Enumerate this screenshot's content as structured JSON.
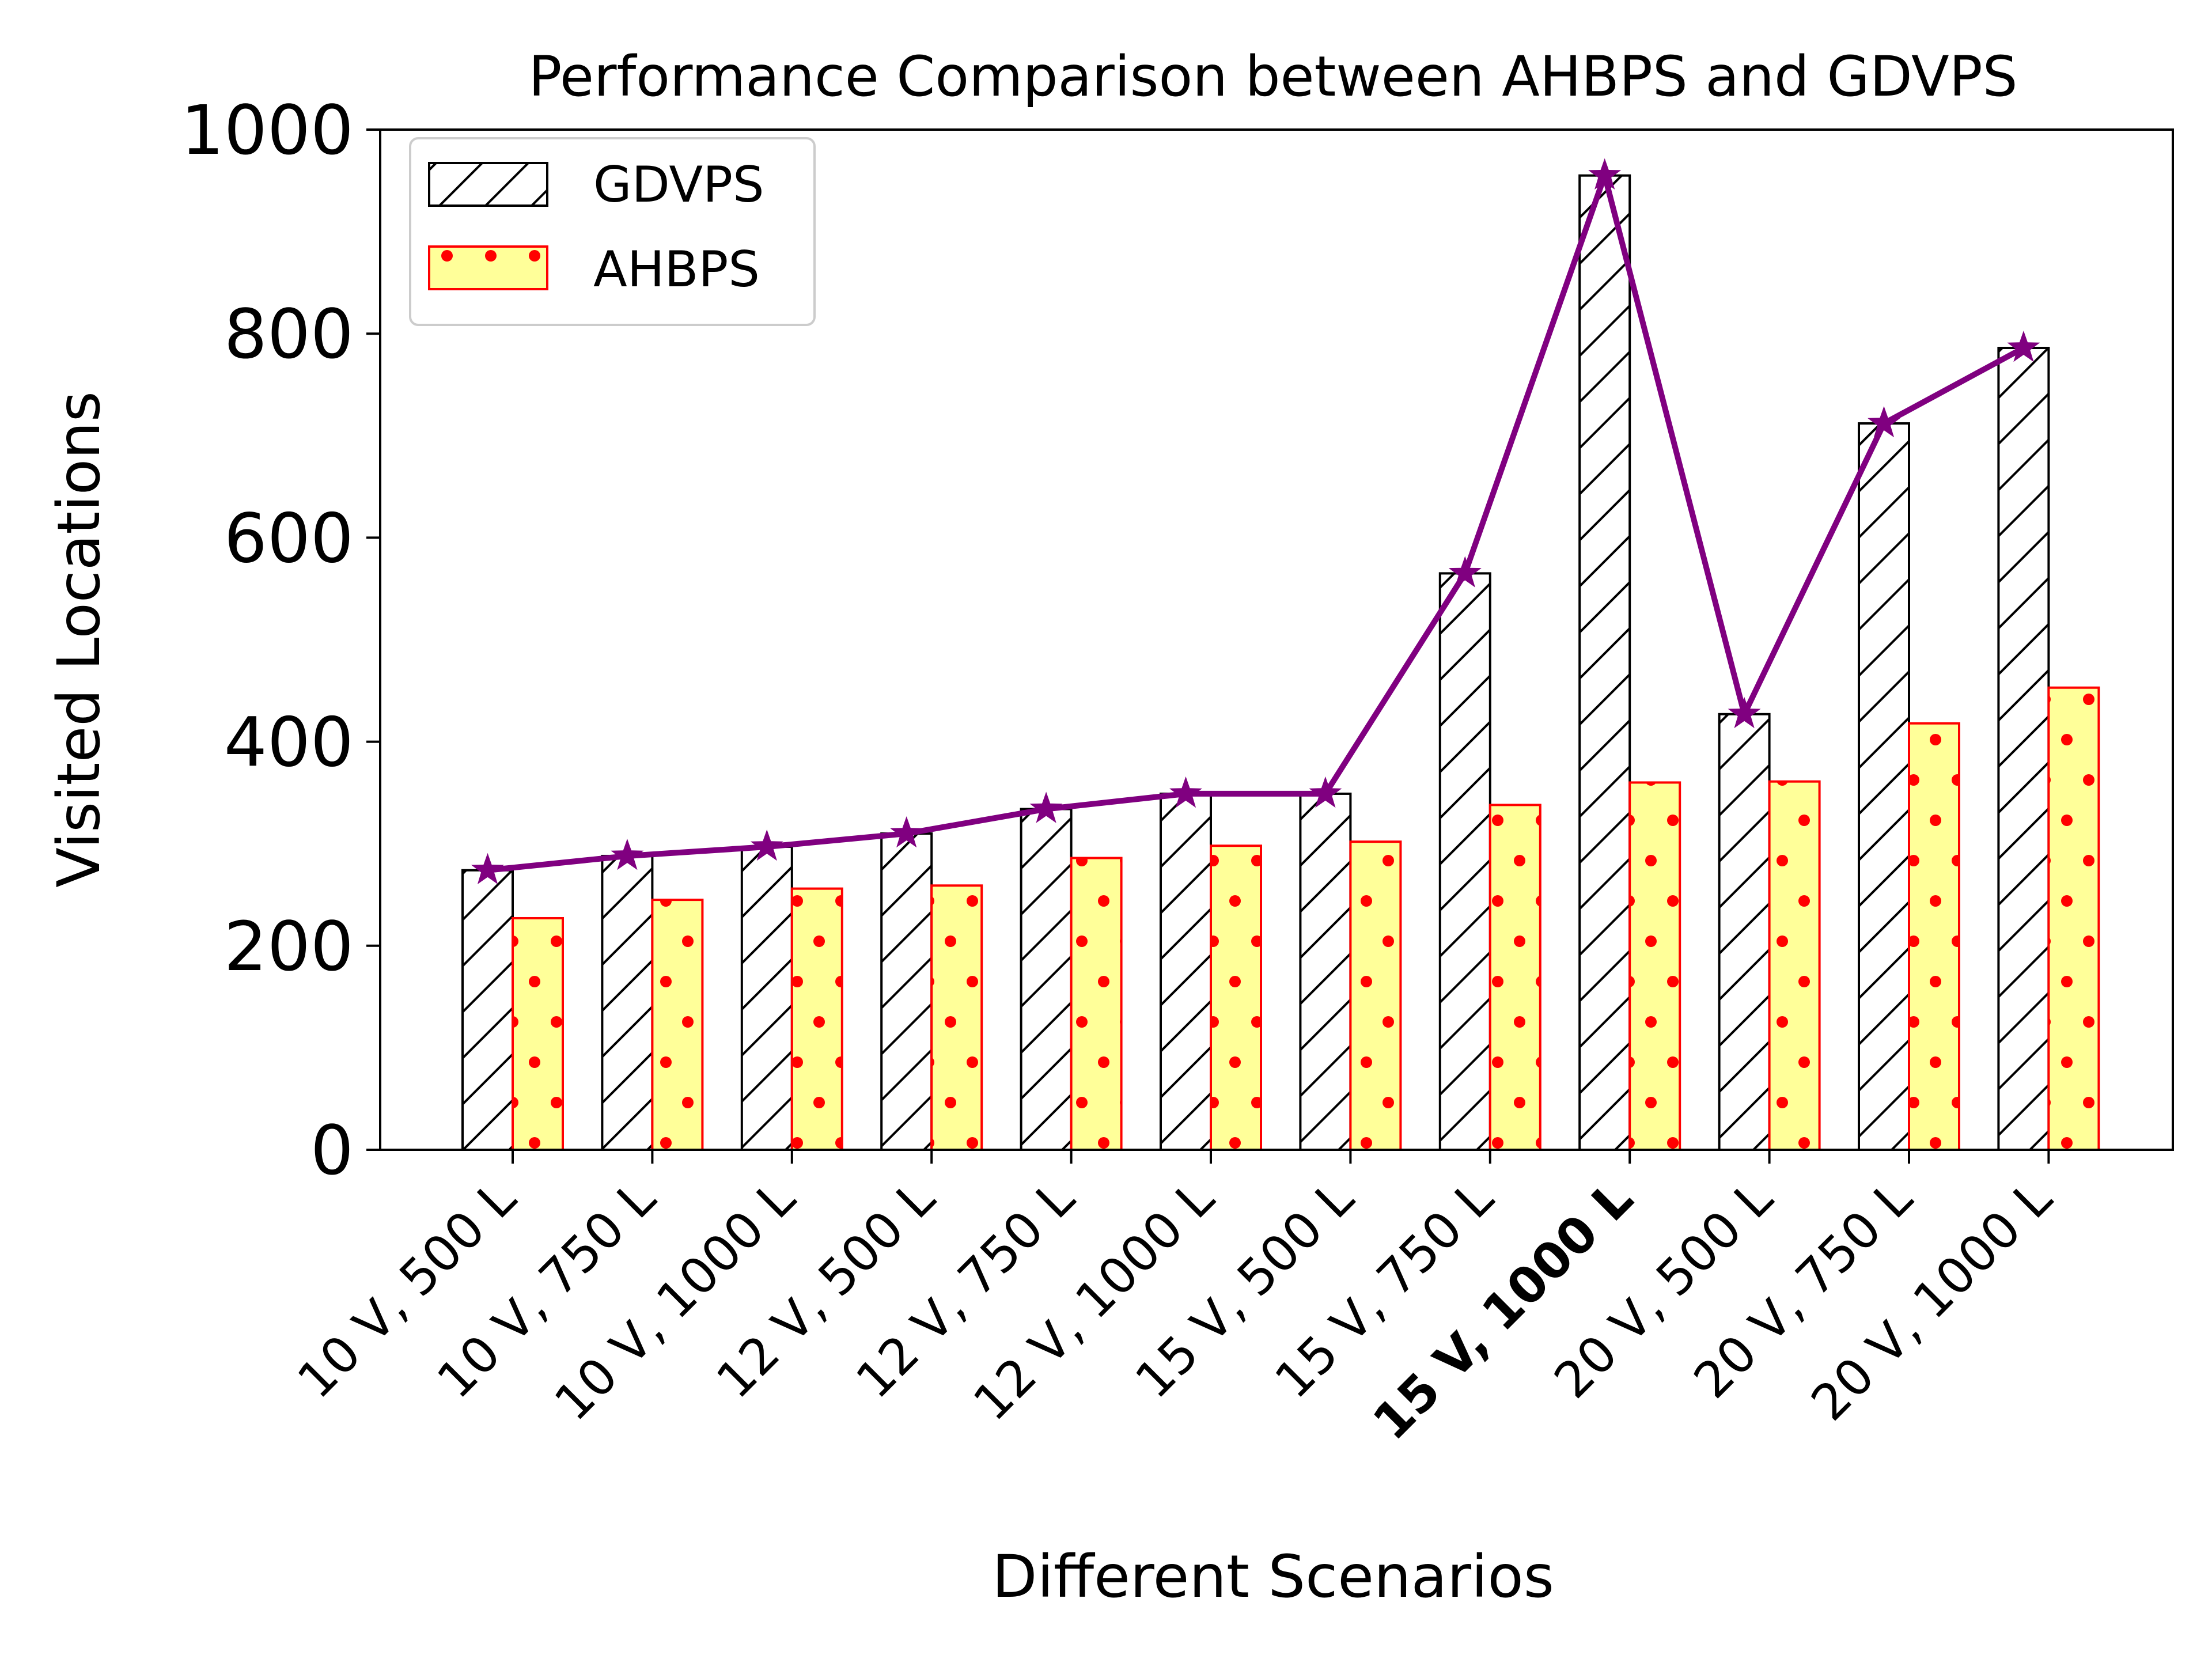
{
  "chart_data": {
    "type": "bar",
    "title": "Performance Comparison between AHBPS and GDVPS",
    "xlabel": "Different Scenarios",
    "ylabel": "Visited Locations",
    "ylim": [
      0,
      1000
    ],
    "yticks": [
      0,
      200,
      400,
      600,
      800,
      1000
    ],
    "categories": [
      "10 V, 500 L",
      "10 V, 750 L",
      "10 V, 1000 L",
      "12 V, 500 L",
      "12 V, 750 L",
      "12 V, 1000 L",
      "15 V, 500 L",
      "15 V, 750 L",
      "15 V, 1000 L",
      "20 V, 500 L",
      "20 V, 750 L",
      "20 V, 1000 L"
    ],
    "highlighted_category": "15 V, 1000 L",
    "series": [
      {
        "name": "GDVPS",
        "values": [
          274,
          288,
          297,
          310,
          334,
          349,
          349,
          565,
          955,
          427,
          712,
          786
        ],
        "fill": "#ffffff",
        "edge": "#000000",
        "pattern": "diagonal-hatch"
      },
      {
        "name": "AHBPS",
        "values": [
          227,
          245,
          256,
          259,
          286,
          298,
          302,
          338,
          360,
          361,
          418,
          453
        ],
        "fill": "#ffff99",
        "edge": "#ff0000",
        "pattern": "dots"
      }
    ],
    "line": {
      "follows": "GDVPS",
      "color": "#800080",
      "marker": "star"
    },
    "legend": {
      "placement": "top-left"
    },
    "grid": false
  }
}
